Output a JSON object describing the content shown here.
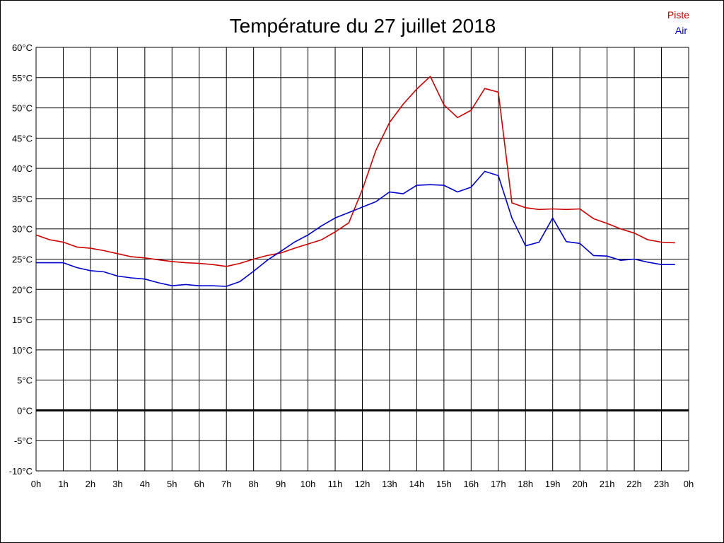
{
  "chart_data": {
    "type": "line",
    "title": "Température du 27 juillet 2018",
    "xlabel": "",
    "ylabel": "",
    "x_ticks": [
      "0h",
      "1h",
      "2h",
      "3h",
      "4h",
      "5h",
      "6h",
      "7h",
      "8h",
      "9h",
      "10h",
      "11h",
      "12h",
      "13h",
      "14h",
      "15h",
      "16h",
      "17h",
      "18h",
      "19h",
      "20h",
      "21h",
      "22h",
      "23h",
      "0h"
    ],
    "y_ticks": [
      "60°C",
      "55°C",
      "50°C",
      "45°C",
      "40°C",
      "35°C",
      "30°C",
      "25°C",
      "20°C",
      "15°C",
      "10°C",
      "5°C",
      "0°C",
      "-5°C",
      "-10°C"
    ],
    "xlim": [
      0,
      24
    ],
    "ylim": [
      -10,
      60
    ],
    "grid": true,
    "legend_position": "top-right",
    "x": [
      0,
      0.5,
      1,
      1.5,
      2,
      2.5,
      3,
      3.5,
      4,
      4.5,
      5,
      5.5,
      6,
      6.5,
      7,
      7.5,
      8,
      8.5,
      9,
      9.5,
      10,
      10.5,
      11,
      11.5,
      12,
      12.5,
      13,
      13.5,
      14,
      14.5,
      15,
      15.5,
      16,
      16.5,
      17,
      17.5,
      18,
      18.5,
      19,
      19.5,
      20,
      20.5,
      21,
      21.5,
      22,
      22.5,
      23,
      23.5
    ],
    "series": [
      {
        "name": "Piste",
        "color": "#cc0000",
        "values": [
          29.0,
          28.2,
          27.8,
          27.0,
          26.8,
          26.4,
          25.9,
          25.4,
          25.2,
          24.9,
          24.6,
          24.4,
          24.3,
          24.1,
          23.8,
          24.3,
          25.0,
          25.6,
          26.0,
          26.8,
          27.5,
          28.2,
          29.5,
          31.0,
          36.5,
          43.0,
          47.6,
          50.6,
          53.1,
          55.2,
          50.5,
          48.4,
          49.6,
          53.2,
          52.6,
          34.3,
          33.5,
          33.2,
          33.3,
          33.2,
          33.3,
          31.7,
          30.9,
          30.0,
          29.3,
          28.2,
          27.8,
          27.7
        ]
      },
      {
        "name": "Air",
        "color": "#0000cc",
        "values": [
          24.4,
          24.4,
          24.4,
          23.6,
          23.1,
          22.9,
          22.2,
          21.9,
          21.7,
          21.1,
          20.6,
          20.8,
          20.6,
          20.6,
          20.5,
          21.3,
          23.0,
          24.8,
          26.3,
          27.8,
          29.0,
          30.5,
          31.8,
          32.7,
          33.6,
          34.5,
          36.1,
          35.8,
          37.2,
          37.3,
          37.2,
          36.1,
          36.9,
          39.5,
          38.8,
          31.8,
          27.2,
          27.8,
          31.8,
          27.9,
          27.6,
          25.6,
          25.5,
          24.8,
          25.0,
          24.5,
          24.1,
          24.1
        ]
      }
    ]
  }
}
